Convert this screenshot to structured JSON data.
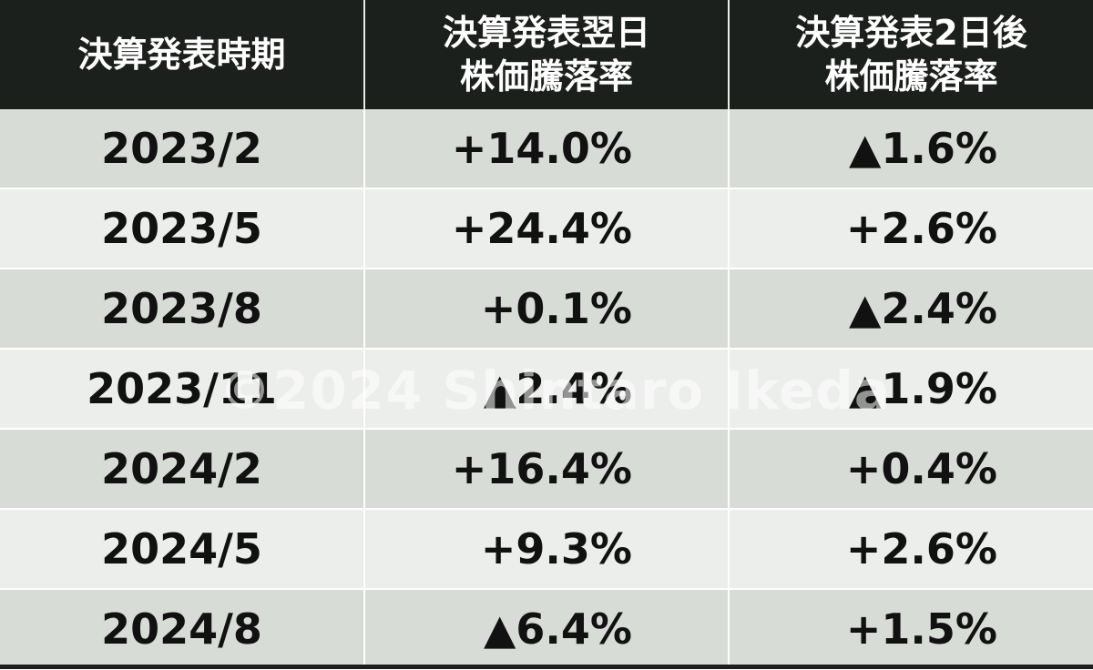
{
  "headers": {
    "period": "決算発表時期",
    "next_day_line1": "決算発表翌日",
    "next_day_line2": "株価騰落率",
    "two_days_line1": "決算発表2日後",
    "two_days_line2": "株価騰落率"
  },
  "rows": [
    {
      "period": "2023/2",
      "next_day": "+14.0%",
      "two_days": "▲1.6%"
    },
    {
      "period": "2023/5",
      "next_day": "+24.4%",
      "two_days": "+2.6%"
    },
    {
      "period": "2023/8",
      "next_day": "+0.1%",
      "two_days": "▲2.4%"
    },
    {
      "period": "2023/11",
      "next_day": "▲2.4%",
      "two_days": "▲1.9%"
    },
    {
      "period": "2024/2",
      "next_day": "+16.4%",
      "two_days": "+0.4%"
    },
    {
      "period": "2024/5",
      "next_day": "+9.3%",
      "two_days": "+2.6%"
    },
    {
      "period": "2024/8",
      "next_day": "▲6.4%",
      "two_days": "+1.5%"
    }
  ],
  "watermark": "©2024 Shintaro Ikeda",
  "colors": {
    "header_bg": "#1c201c",
    "row_odd": "#d8dcd6",
    "row_even": "#eceeeb"
  }
}
